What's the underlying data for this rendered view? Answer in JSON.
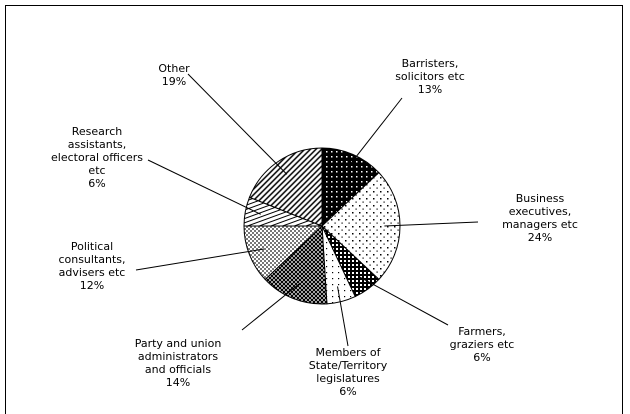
{
  "chart_data": {
    "type": "pie",
    "categories": [
      "Barristers, solicitors etc",
      "Business executives, managers etc",
      "Farmers, graziers etc",
      "Members of State/Territory legislatures",
      "Party and union administrators and officials",
      "Political consultants, advisers etc",
      "Research assistants, electoral officers etc",
      "Other"
    ],
    "values": [
      13,
      24,
      6,
      6,
      14,
      12,
      6,
      19
    ],
    "value_labels": [
      "13%",
      "24%",
      "6%",
      "6%",
      "14%",
      "12%",
      "6%",
      "19%"
    ],
    "colors": [
      "#000000",
      "#ffffff",
      "#333333",
      "#ffffff",
      "#444444",
      "#aaaaaa",
      "#dddddd",
      "#888888"
    ]
  }
}
